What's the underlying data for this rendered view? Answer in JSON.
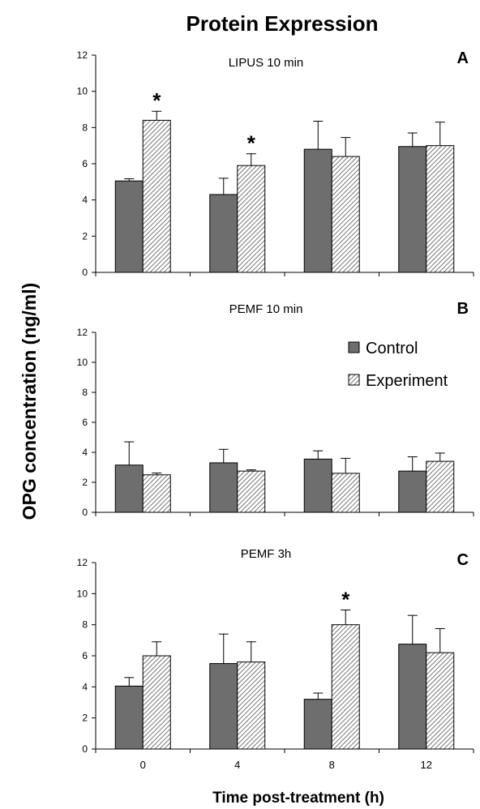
{
  "chart_data": {
    "type": "bar",
    "title": "Protein Expression",
    "ylabel": "OPG concentration (ng/ml)",
    "xlabel": "Time post-treatment (h)",
    "categories": [
      "0",
      "4",
      "8",
      "12"
    ],
    "ylim": [
      0,
      12
    ],
    "yticks": [
      "0",
      "2",
      "4",
      "6",
      "8",
      "10",
      "12"
    ],
    "legend": {
      "entries": [
        "Control",
        "Experiment"
      ],
      "placement": "top-right of panel B"
    },
    "colors": {
      "control": "#6e6e6e",
      "experiment_hatch": "#555555"
    },
    "panels": [
      {
        "letter": "A",
        "subtitle": "LIPUS 10 min",
        "series": [
          {
            "name": "Control",
            "values": [
              5.05,
              4.3,
              6.8,
              6.95
            ],
            "errors": [
              0.12,
              0.9,
              1.55,
              0.75
            ]
          },
          {
            "name": "Experiment",
            "values": [
              8.4,
              5.9,
              6.4,
              7.0
            ],
            "errors": [
              0.5,
              0.65,
              1.05,
              1.3
            ]
          }
        ],
        "significance": [
          {
            "category": "0",
            "series": "Experiment",
            "label": "*"
          },
          {
            "category": "4",
            "series": "Experiment",
            "label": "*"
          }
        ]
      },
      {
        "letter": "B",
        "subtitle": "PEMF 10 min",
        "series": [
          {
            "name": "Control",
            "values": [
              3.15,
              3.3,
              3.55,
              2.75
            ],
            "errors": [
              1.55,
              0.9,
              0.55,
              0.95
            ]
          },
          {
            "name": "Experiment",
            "values": [
              2.5,
              2.75,
              2.6,
              3.4
            ],
            "errors": [
              0.12,
              0.08,
              1.0,
              0.55
            ]
          }
        ],
        "significance": []
      },
      {
        "letter": "C",
        "subtitle": "PEMF 3h",
        "series": [
          {
            "name": "Control",
            "values": [
              4.05,
              5.5,
              3.2,
              6.75
            ],
            "errors": [
              0.55,
              1.9,
              0.4,
              1.85
            ]
          },
          {
            "name": "Experiment",
            "values": [
              6.0,
              5.6,
              8.0,
              6.2
            ],
            "errors": [
              0.9,
              1.3,
              0.95,
              1.55
            ]
          }
        ],
        "significance": [
          {
            "category": "8",
            "series": "Experiment",
            "label": "*"
          }
        ]
      }
    ]
  }
}
